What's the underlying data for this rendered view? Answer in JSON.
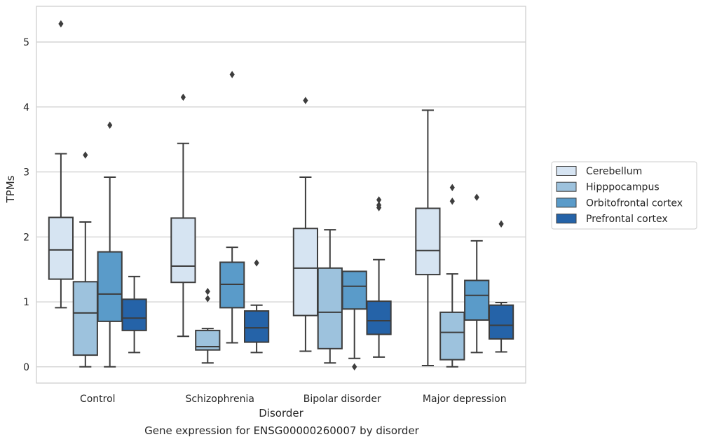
{
  "chart_data": {
    "type": "box",
    "caption": "Gene expression for ENSG00000260007 by disorder",
    "xlabel": "Disorder",
    "ylabel": "TPMs",
    "ylim": [
      -0.25,
      5.55
    ],
    "yticks": [
      0,
      1,
      2,
      3,
      4,
      5
    ],
    "grid": true,
    "legend_position": "right",
    "categories": [
      "Control",
      "Schizophrenia",
      "Bipolar disorder",
      "Major depression"
    ],
    "series": [
      {
        "name": "Cerebellum",
        "color": "#d6e4f2",
        "boxes": [
          {
            "whisker_low": 0.91,
            "q1": 1.35,
            "median": 1.8,
            "q3": 2.3,
            "whisker_high": 3.28,
            "outliers": [
              5.28
            ]
          },
          {
            "whisker_low": 0.47,
            "q1": 1.3,
            "median": 1.55,
            "q3": 2.29,
            "whisker_high": 3.44,
            "outliers": [
              4.15
            ]
          },
          {
            "whisker_low": 0.24,
            "q1": 0.79,
            "median": 1.52,
            "q3": 2.13,
            "whisker_high": 2.92,
            "outliers": [
              4.1
            ]
          },
          {
            "whisker_low": 0.02,
            "q1": 1.42,
            "median": 1.79,
            "q3": 2.44,
            "whisker_high": 3.95,
            "outliers": []
          }
        ]
      },
      {
        "name": "Hipppocampus",
        "color": "#9dc2dd",
        "boxes": [
          {
            "whisker_low": 0.0,
            "q1": 0.18,
            "median": 0.83,
            "q3": 1.31,
            "whisker_high": 2.23,
            "outliers": [
              3.26
            ]
          },
          {
            "whisker_low": 0.06,
            "q1": 0.26,
            "median": 0.31,
            "q3": 0.56,
            "whisker_high": 0.59,
            "outliers": [
              1.05,
              1.16
            ]
          },
          {
            "whisker_low": 0.06,
            "q1": 0.28,
            "median": 0.84,
            "q3": 1.52,
            "whisker_high": 2.11,
            "outliers": []
          },
          {
            "whisker_low": 0.0,
            "q1": 0.11,
            "median": 0.53,
            "q3": 0.84,
            "whisker_high": 1.43,
            "outliers": [
              2.55,
              2.76
            ]
          }
        ]
      },
      {
        "name": "Orbitofrontal cortex",
        "color": "#5a9bc9",
        "boxes": [
          {
            "whisker_low": 0.0,
            "q1": 0.7,
            "median": 1.12,
            "q3": 1.77,
            "whisker_high": 2.92,
            "outliers": [
              3.72
            ]
          },
          {
            "whisker_low": 0.37,
            "q1": 0.91,
            "median": 1.27,
            "q3": 1.61,
            "whisker_high": 1.84,
            "outliers": [
              4.5
            ]
          },
          {
            "whisker_low": 0.13,
            "q1": 0.89,
            "median": 1.24,
            "q3": 1.47,
            "whisker_high": null,
            "outliers": [
              0.0
            ]
          },
          {
            "whisker_low": 0.22,
            "q1": 0.72,
            "median": 1.1,
            "q3": 1.33,
            "whisker_high": 1.94,
            "outliers": [
              2.61
            ]
          }
        ]
      },
      {
        "name": "Prefrontal cortex",
        "color": "#2563a8",
        "boxes": [
          {
            "whisker_low": 0.22,
            "q1": 0.56,
            "median": 0.75,
            "q3": 1.04,
            "whisker_high": 1.39,
            "outliers": []
          },
          {
            "whisker_low": 0.22,
            "q1": 0.38,
            "median": 0.6,
            "q3": 0.86,
            "whisker_high": 0.95,
            "outliers": [
              1.6
            ]
          },
          {
            "whisker_low": 0.15,
            "q1": 0.5,
            "median": 0.71,
            "q3": 1.01,
            "whisker_high": 1.65,
            "outliers": [
              2.45,
              2.49,
              2.57
            ]
          },
          {
            "whisker_low": 0.23,
            "q1": 0.43,
            "median": 0.64,
            "q3": 0.95,
            "whisker_high": 0.99,
            "outliers": [
              2.2
            ]
          }
        ]
      }
    ]
  }
}
